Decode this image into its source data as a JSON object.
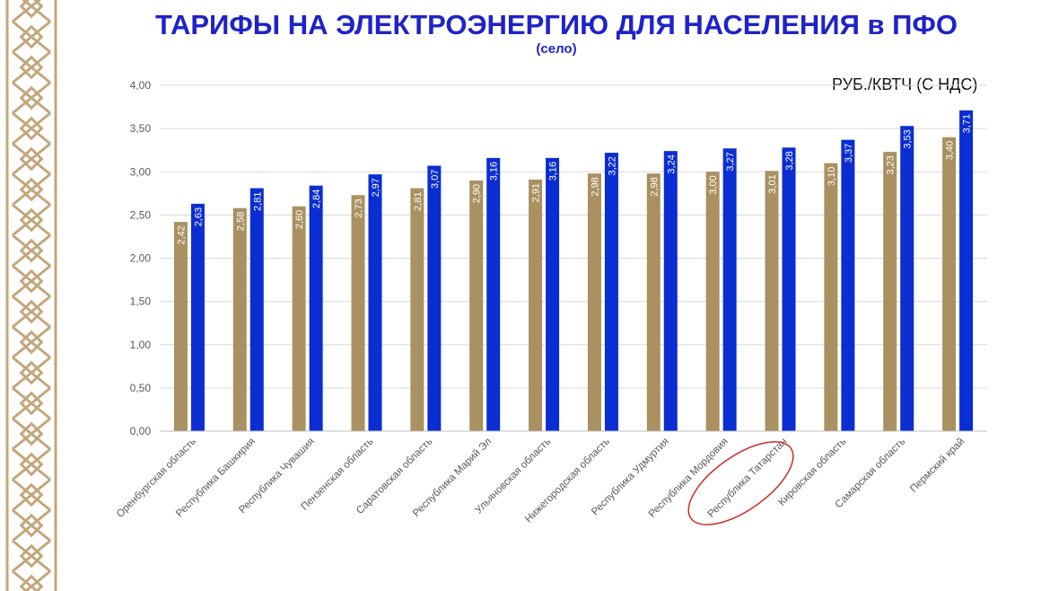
{
  "title": "ТАРИФЫ НА ЭЛЕКТРОЭНЕРГИЮ ДЛЯ НАСЕЛЕНИЯ в ПФО",
  "subtitle": "(село)",
  "unit_label": "РУБ./КВТЧ (С НДС)",
  "colors": {
    "title": "#1F23C8",
    "series_a": "#A99161",
    "series_b": "#0A2ED2",
    "highlight": "#D0282B",
    "ornament": "#C2A77A"
  },
  "highlighted_category": "Республика Татарстан",
  "chart_data": {
    "type": "bar",
    "title": "ТАРИФЫ НА ЭЛЕКТРОЭНЕРГИЮ ДЛЯ НАСЕЛЕНИЯ в ПФО",
    "subtitle": "(село)",
    "ylabel": "РУБ./КВТЧ (С НДС)",
    "xlabel": "",
    "ylim": [
      0,
      4
    ],
    "yticks": [
      "0,00",
      "0,50",
      "1,00",
      "1,50",
      "2,00",
      "2,50",
      "3,00",
      "3,50",
      "4,00"
    ],
    "grid": true,
    "legend": "none",
    "categories": [
      "Оренбургская область",
      "Республика Башкирия",
      "Республика Чувашия",
      "Пензенская область",
      "Саратовская область",
      "Республика Марий Эл",
      "Ульяновская область",
      "Нижегородская область",
      "Республика Удмуртия",
      "Республика Мордовия",
      "Республика Татарстан",
      "Кировская область",
      "Самарская область",
      "Пермский край"
    ],
    "series": [
      {
        "values": [
          2.42,
          2.58,
          2.6,
          2.73,
          2.81,
          2.9,
          2.91,
          2.98,
          2.98,
          3.0,
          3.01,
          3.1,
          3.23,
          3.4
        ],
        "labels": [
          "2,42",
          "2,58",
          "2,60",
          "2,73",
          "2,81",
          "2,90",
          "2,91",
          "2,98",
          "2,98",
          "3,00",
          "3,01",
          "3,10",
          "3,23",
          "3,40"
        ]
      },
      {
        "values": [
          2.63,
          2.81,
          2.84,
          2.97,
          3.07,
          3.16,
          3.16,
          3.22,
          3.24,
          3.27,
          3.28,
          3.37,
          3.53,
          3.71
        ],
        "labels": [
          "2,63",
          "2,81",
          "2,84",
          "2,97",
          "3,07",
          "3,16",
          "3,16",
          "3,22",
          "3,24",
          "3,27",
          "3,28",
          "3,37",
          "3,53",
          "3,71"
        ]
      }
    ]
  }
}
